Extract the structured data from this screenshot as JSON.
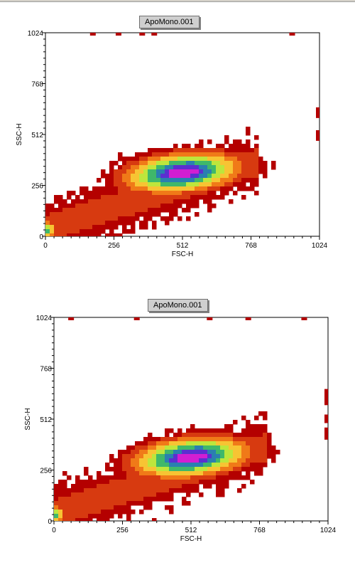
{
  "chart_data": [
    {
      "type": "heatmap",
      "title": "ApoMono.001",
      "xlabel": "FSC-H",
      "ylabel": "SSC-H",
      "xlim": [
        0,
        1024
      ],
      "ylim": [
        0,
        1024
      ],
      "xticks": [
        "0",
        "256",
        "512",
        "768",
        "1024"
      ],
      "yticks": [
        "0",
        "256",
        "512",
        "768",
        "1024"
      ],
      "grid": false,
      "colormap": [
        "#b40000",
        "#d73a10",
        "#f07a18",
        "#f7c433",
        "#bde63c",
        "#3fb86a",
        "#2a7fb0",
        "#5b2fd0",
        "#d21ed2"
      ],
      "main_population": {
        "x_center": 512,
        "y_center": 320,
        "x_spread": 210,
        "y_spread": 95
      },
      "debris": {
        "x": 0,
        "y": 30
      }
    },
    {
      "type": "heatmap",
      "title": "ApoMono.001",
      "xlabel": "FSC-H",
      "ylabel": "SSC-H",
      "xlim": [
        0,
        1024
      ],
      "ylim": [
        0,
        1024
      ],
      "xticks": [
        "0",
        "256",
        "512",
        "768",
        "1024"
      ],
      "yticks": [
        "0",
        "256",
        "512",
        "768",
        "1024"
      ],
      "grid": false,
      "colormap": [
        "#b40000",
        "#d73a10",
        "#f07a18",
        "#f7c433",
        "#bde63c",
        "#3fb86a",
        "#2a7fb0",
        "#5b2fd0",
        "#d21ed2"
      ],
      "main_population": {
        "x_center": 512,
        "y_center": 320,
        "x_spread": 210,
        "y_spread": 95
      },
      "debris": {
        "x": 0,
        "y": 30
      }
    }
  ]
}
